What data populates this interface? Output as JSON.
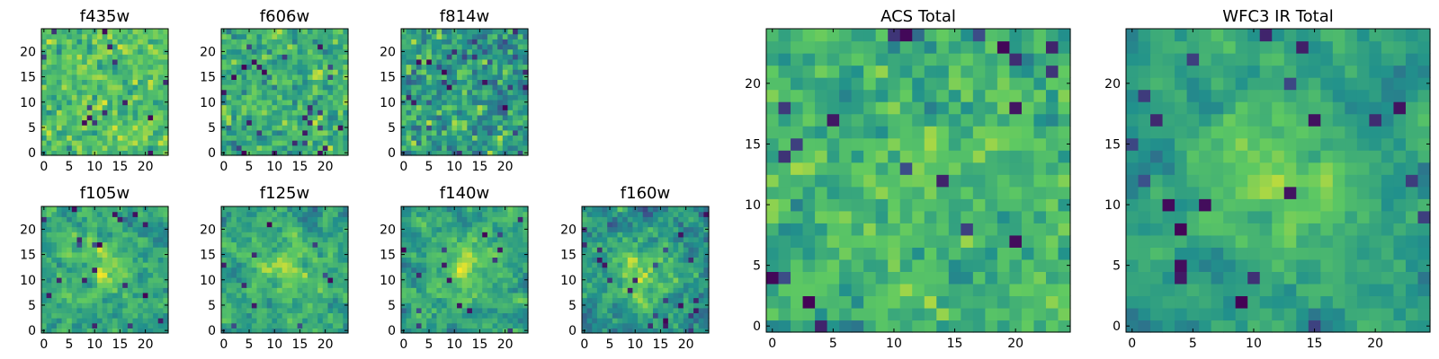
{
  "figure": {
    "background": "#ffffff"
  },
  "colormap": {
    "name": "viridis",
    "stops": [
      "#440154",
      "#3b528b",
      "#21918c",
      "#5ec962",
      "#fde725"
    ]
  },
  "chart_data": [
    {
      "type": "heatmap",
      "title": "f435w",
      "grid_size": 25,
      "seed": 11,
      "pattern": "noise",
      "smooth": 0.15,
      "gain": 1.0,
      "center": 0.7,
      "spread": 0.11,
      "center_boost": 0.0,
      "x_ticks": [
        0,
        5,
        10,
        15,
        20
      ],
      "y_ticks": [
        0,
        5,
        10,
        15,
        20
      ],
      "xlim": [
        -0.5,
        24.5
      ],
      "ylim": [
        -0.5,
        24.5
      ]
    },
    {
      "type": "heatmap",
      "title": "f606w",
      "grid_size": 25,
      "seed": 23,
      "pattern": "noise",
      "smooth": 0.15,
      "gain": 1.0,
      "center": 0.63,
      "spread": 0.12,
      "center_boost": 0.02,
      "x_ticks": [
        0,
        5,
        10,
        15,
        20
      ],
      "y_ticks": [
        0,
        5,
        10,
        15,
        20
      ],
      "xlim": [
        -0.5,
        24.5
      ],
      "ylim": [
        -0.5,
        24.5
      ]
    },
    {
      "type": "heatmap",
      "title": "f814w",
      "grid_size": 25,
      "seed": 37,
      "pattern": "noise",
      "smooth": 0.15,
      "gain": 1.0,
      "center": 0.55,
      "spread": 0.15,
      "center_boost": 0.02,
      "x_ticks": [
        0,
        5,
        10,
        15,
        20
      ],
      "y_ticks": [
        0,
        5,
        10,
        15,
        20
      ],
      "xlim": [
        -0.5,
        24.5
      ],
      "ylim": [
        -0.5,
        24.5
      ]
    },
    {
      "type": "heatmap",
      "title": "f105w",
      "grid_size": 25,
      "seed": 41,
      "pattern": "source",
      "smooth": 0.5,
      "gain": 1.0,
      "center": 0.58,
      "spread": 0.12,
      "center_boost": 0.18,
      "x_ticks": [
        0,
        5,
        10,
        15,
        20
      ],
      "y_ticks": [
        0,
        5,
        10,
        15,
        20
      ],
      "xlim": [
        -0.5,
        24.5
      ],
      "ylim": [
        -0.5,
        24.5
      ]
    },
    {
      "type": "heatmap",
      "title": "f125w",
      "grid_size": 25,
      "seed": 53,
      "pattern": "source",
      "smooth": 0.5,
      "gain": 1.0,
      "center": 0.6,
      "spread": 0.12,
      "center_boost": 0.16,
      "x_ticks": [
        0,
        5,
        10,
        15,
        20
      ],
      "y_ticks": [
        0,
        5,
        10,
        15,
        20
      ],
      "xlim": [
        -0.5,
        24.5
      ],
      "ylim": [
        -0.5,
        24.5
      ]
    },
    {
      "type": "heatmap",
      "title": "f140w",
      "grid_size": 25,
      "seed": 67,
      "pattern": "source",
      "smooth": 0.5,
      "gain": 1.0,
      "center": 0.58,
      "spread": 0.12,
      "center_boost": 0.24,
      "x_ticks": [
        0,
        5,
        10,
        15,
        20
      ],
      "y_ticks": [
        0,
        5,
        10,
        15,
        20
      ],
      "xlim": [
        -0.5,
        24.5
      ],
      "ylim": [
        -0.5,
        24.5
      ]
    },
    {
      "type": "heatmap",
      "title": "f160w",
      "grid_size": 25,
      "seed": 79,
      "pattern": "source",
      "smooth": 0.5,
      "gain": 1.0,
      "center": 0.52,
      "spread": 0.14,
      "center_boost": 0.24,
      "x_ticks": [
        0,
        5,
        10,
        15,
        20
      ],
      "y_ticks": [
        0,
        5,
        10,
        15,
        20
      ],
      "xlim": [
        -0.5,
        24.5
      ],
      "ylim": [
        -0.5,
        24.5
      ]
    },
    {
      "type": "heatmap",
      "title": "ACS Total",
      "grid_size": 25,
      "seed": 97,
      "pattern": "noise",
      "smooth": 0.3,
      "gain": 1.0,
      "center": 0.64,
      "spread": 0.11,
      "center_boost": 0.05,
      "x_ticks": [
        0,
        5,
        10,
        15,
        20
      ],
      "y_ticks": [
        0,
        5,
        10,
        15,
        20
      ],
      "xlim": [
        -0.5,
        24.5
      ],
      "ylim": [
        -0.5,
        24.5
      ]
    },
    {
      "type": "heatmap",
      "title": "WFC3 IR Total",
      "grid_size": 25,
      "seed": 113,
      "pattern": "source",
      "smooth": 0.6,
      "gain": 1.0,
      "center": 0.55,
      "spread": 0.1,
      "center_boost": 0.24,
      "x_ticks": [
        0,
        5,
        10,
        15,
        20
      ],
      "y_ticks": [
        0,
        5,
        10,
        15,
        20
      ],
      "xlim": [
        -0.5,
        24.5
      ],
      "ylim": [
        -0.5,
        24.5
      ]
    }
  ]
}
